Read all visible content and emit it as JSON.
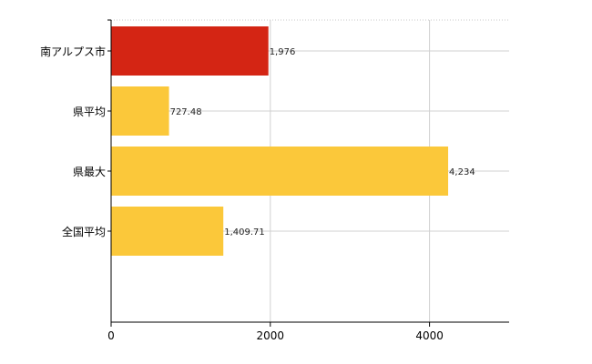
{
  "chart_data": {
    "type": "bar",
    "orientation": "horizontal",
    "categories": [
      "南アルプス市",
      "県平均",
      "県最大",
      "全国平均"
    ],
    "values": [
      1976,
      727.48,
      4234,
      1409.71
    ],
    "value_labels": [
      "1,976",
      "727.48",
      "4,234",
      "1,409.71"
    ],
    "colors": [
      "#d42514",
      "#fbc83a",
      "#fbc83a",
      "#fbc83a"
    ],
    "xlim": [
      0,
      5000
    ],
    "xticks": [
      0,
      2000,
      4000
    ],
    "xtick_labels": [
      "0",
      "2000",
      "4000"
    ],
    "grid": true,
    "title": "",
    "xlabel": "",
    "ylabel": ""
  }
}
